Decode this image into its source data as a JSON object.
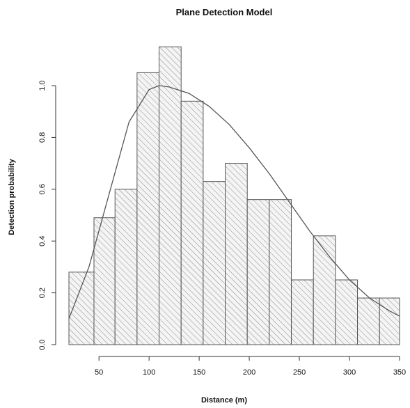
{
  "chart_data": {
    "type": "bar",
    "title": "Plane Detection Model",
    "xlabel": "Distance (m)",
    "ylabel": "Detection probability",
    "xlim": [
      20,
      350
    ],
    "ylim": [
      0,
      1.2
    ],
    "xticks": [
      50,
      100,
      150,
      200,
      250,
      300,
      350
    ],
    "yticks": [
      0.0,
      0.2,
      0.4,
      0.6,
      0.8,
      1.0
    ],
    "bin_edges": [
      20,
      45,
      66,
      88,
      110,
      132,
      154,
      176,
      198,
      220,
      242,
      264,
      286,
      308,
      330,
      350
    ],
    "values": [
      0.28,
      0.49,
      0.6,
      1.05,
      1.15,
      0.94,
      0.63,
      0.7,
      0.56,
      0.56,
      0.25,
      0.42,
      0.25,
      0.18,
      0.18
    ],
    "curve": {
      "x": [
        20,
        40,
        60,
        80,
        100,
        110,
        120,
        140,
        160,
        180,
        200,
        220,
        240,
        260,
        280,
        300,
        320,
        340,
        350
      ],
      "y": [
        0.1,
        0.3,
        0.58,
        0.86,
        0.985,
        1.0,
        0.995,
        0.97,
        0.92,
        0.85,
        0.76,
        0.66,
        0.55,
        0.44,
        0.34,
        0.25,
        0.18,
        0.13,
        0.11
      ]
    },
    "grid": false,
    "fill_pattern": "diagonal-hatch"
  }
}
